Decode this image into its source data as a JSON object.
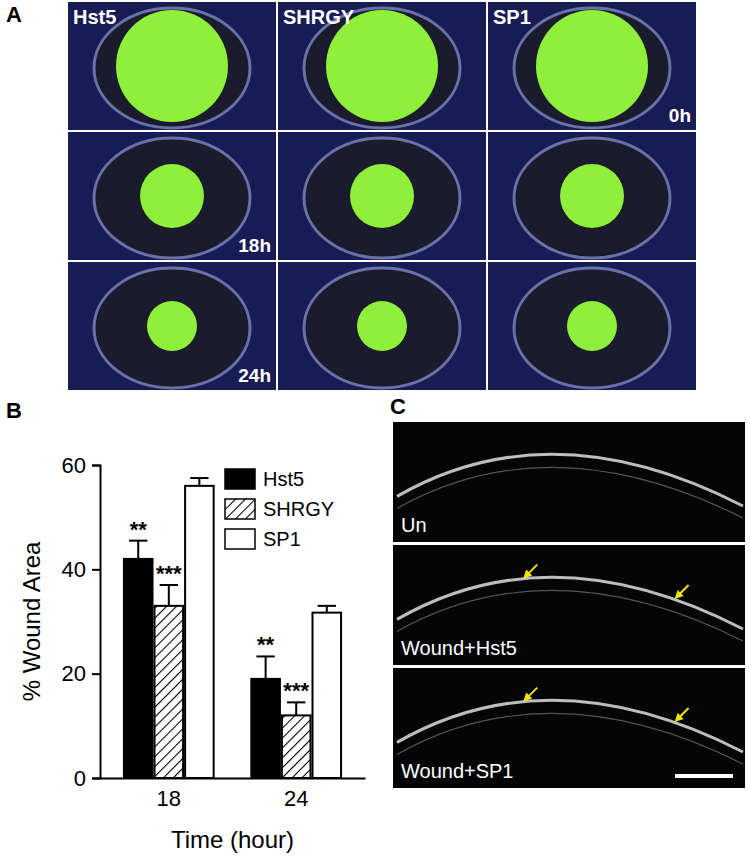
{
  "panel_a": {
    "letter": "A",
    "images": [
      [
        {
          "top_left": "Hst5"
        },
        {
          "top_left": "SHRGY"
        },
        {
          "top_left": "SP1",
          "bottom_right": "0h"
        }
      ],
      [
        {
          "bottom_right": "18h"
        },
        {},
        {}
      ],
      [
        {
          "bottom_right": "24h"
        },
        {},
        {}
      ]
    ]
  },
  "chart_data": {
    "letter": "B",
    "type": "bar",
    "x_label": "Time (hour)",
    "y_label": "% Wound Area",
    "categories": [
      "18",
      "24"
    ],
    "series": [
      {
        "name": "Hst5",
        "color": "#000000",
        "values": [
          42,
          19
        ],
        "errors": [
          3.5,
          4.3
        ],
        "significance": [
          "**",
          "**"
        ]
      },
      {
        "name": "SHRGY",
        "color": "#ffffff",
        "values": [
          33,
          12
        ],
        "errors": [
          4,
          2.5
        ],
        "significance": [
          "***",
          "***"
        ]
      },
      {
        "name": "SP1",
        "color": "#ffffff",
        "values": [
          56,
          31.7
        ],
        "errors": [
          1.5,
          1.3
        ]
      }
    ],
    "ylim": [
      0,
      60
    ],
    "yticks": [
      0,
      20,
      40,
      60
    ],
    "legend": "top-right"
  },
  "panel_c": {
    "letter": "C",
    "images": [
      {
        "bottom_left": "Un"
      },
      {
        "bottom_left": "Wound+Hst5"
      },
      {
        "bottom_left": "Wound+SP1"
      }
    ]
  }
}
